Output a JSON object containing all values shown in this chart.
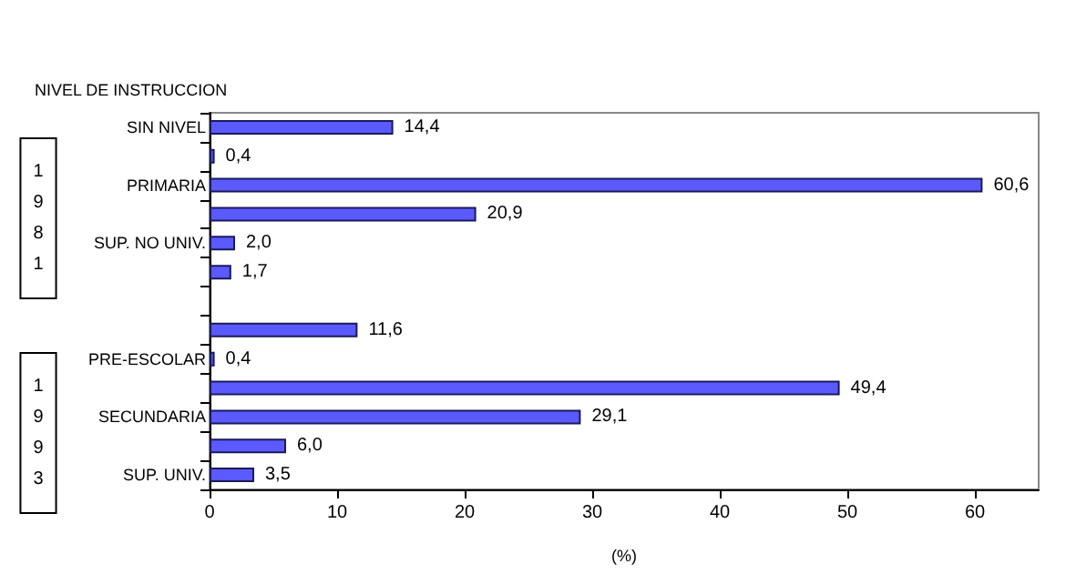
{
  "chart_data": {
    "type": "bar",
    "orientation": "horizontal",
    "title": "NIVEL DE INSTRUCCION",
    "xlabel": "(%)",
    "categories": [
      "SIN NIVEL",
      null,
      "PRIMARIA",
      null,
      "SUP. NO UNIV.",
      null,
      null,
      null,
      "PRE-ESCOLAR",
      null,
      "SECUNDARIA",
      null,
      "SUP. UNIV."
    ],
    "values": [
      14.4,
      0.4,
      60.6,
      20.9,
      2.0,
      1.7,
      null,
      11.6,
      0.4,
      49.4,
      29.1,
      6.0,
      3.5
    ],
    "value_labels": [
      "14,4",
      "0,4",
      "60,6",
      "20,9",
      "2,0",
      "1,7",
      null,
      "11,6",
      "0,4",
      "49,4",
      "29,1",
      "6,0",
      "3,5"
    ],
    "color": "#5a5aff",
    "xlim": [
      0,
      65
    ],
    "xticks": [
      0,
      10,
      20,
      30,
      40,
      50,
      60
    ],
    "annotations": [
      "1981",
      "1993"
    ]
  }
}
